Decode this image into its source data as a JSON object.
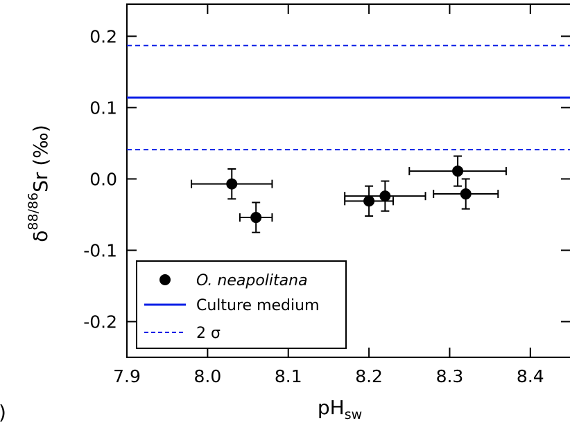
{
  "chart_data": {
    "type": "scatter",
    "xlabel": "pH",
    "xlabel_sub": "sw",
    "ylabel_prefix": "δ",
    "ylabel_sup": "88/86",
    "ylabel_main": "Sr (‰)",
    "xlim": [
      7.9,
      8.45
    ],
    "ylim": [
      -0.25,
      0.245
    ],
    "x_ticks": [
      7.9,
      8.0,
      8.1,
      8.2,
      8.3,
      8.4
    ],
    "x_tick_labels": [
      "7.9",
      "8.0",
      "8.1",
      "8.2",
      "8.3",
      "8.4"
    ],
    "y_ticks": [
      0.2,
      0.1,
      0.0,
      -0.1,
      -0.2
    ],
    "y_tick_labels": [
      "0.2",
      "0.1",
      "0.0",
      "-0.1",
      "-0.2"
    ],
    "series": [
      {
        "name": "O. neapolitana",
        "kind": "points",
        "color": "#000000",
        "points": [
          {
            "x": 8.03,
            "y": -0.007,
            "xerr": 0.05,
            "yerr": 0.021
          },
          {
            "x": 8.06,
            "y": -0.054,
            "xerr": 0.02,
            "yerr": 0.021
          },
          {
            "x": 8.2,
            "y": -0.031,
            "xerr": 0.03,
            "yerr": 0.021
          },
          {
            "x": 8.22,
            "y": -0.024,
            "xerr": 0.05,
            "yerr": 0.021
          },
          {
            "x": 8.31,
            "y": 0.011,
            "xerr": 0.06,
            "yerr": 0.021
          },
          {
            "x": 8.32,
            "y": -0.021,
            "xerr": 0.04,
            "yerr": 0.021
          }
        ]
      },
      {
        "name": "Culture medium",
        "kind": "hline",
        "y": 0.114,
        "color": "#0a1ee6",
        "dash": "solid"
      },
      {
        "name": "2 σ",
        "kind": "hline",
        "y": 0.187,
        "color": "#0a1ee6",
        "dash": "dashed"
      },
      {
        "name": "",
        "kind": "hline",
        "y": 0.041,
        "color": "#0a1ee6",
        "dash": "dashed"
      }
    ],
    "legend": {
      "placement": "bottom-left",
      "entries": [
        "O. neapolitana",
        "Culture medium",
        "2 σ"
      ]
    },
    "grid": false
  },
  "panel_label_fragment": ")"
}
